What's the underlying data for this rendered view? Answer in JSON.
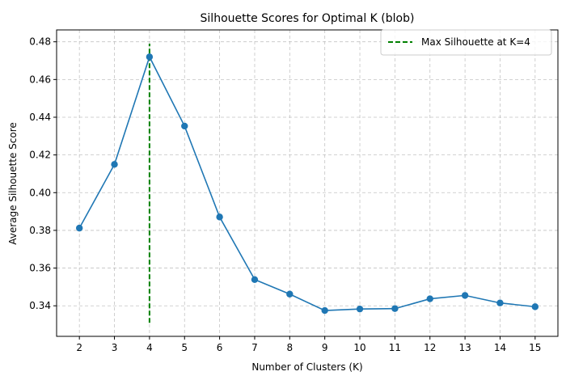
{
  "chart_data": {
    "type": "line",
    "title": "Silhouette Scores for Optimal K (blob)",
    "xlabel": "Number of Clusters (K)",
    "ylabel": "Average Silhouette Score",
    "x": [
      2,
      3,
      4,
      5,
      6,
      7,
      8,
      9,
      10,
      11,
      12,
      13,
      14,
      15
    ],
    "series": [
      {
        "values": [
          0.3812,
          0.415,
          0.472,
          0.4353,
          0.3871,
          0.3539,
          0.3462,
          0.3375,
          0.3383,
          0.3385,
          0.3437,
          0.3455,
          0.3415,
          0.3395
        ],
        "color": "#1f77b4",
        "marker": "circle"
      }
    ],
    "reference_line": {
      "label": "Max Silhouette at K=4",
      "x": 4,
      "y_range": [
        0.331,
        0.479
      ],
      "color": "#008000",
      "style": "dashed"
    },
    "xticks": [
      "2",
      "3",
      "4",
      "5",
      "6",
      "7",
      "8",
      "9",
      "10",
      "11",
      "12",
      "13",
      "14",
      "15"
    ],
    "yticks": [
      "0.34",
      "0.36",
      "0.38",
      "0.40",
      "0.42",
      "0.44",
      "0.46",
      "0.48"
    ],
    "xlim": [
      1.35,
      15.65
    ],
    "ylim": [
      0.3238,
      0.4863
    ],
    "grid": true,
    "legend_position": "top-right"
  }
}
